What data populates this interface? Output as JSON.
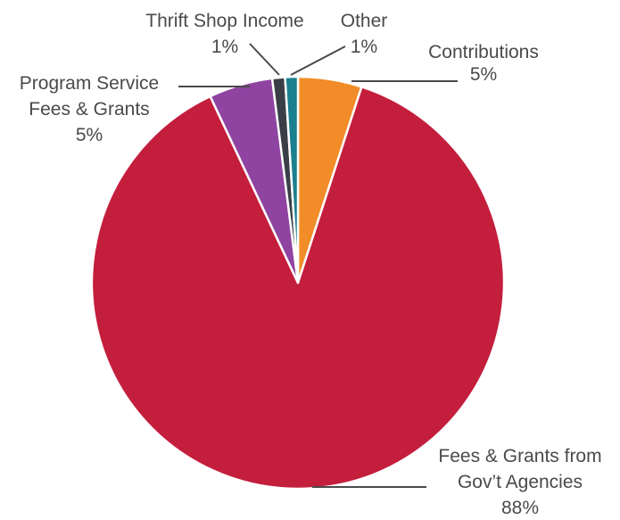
{
  "chart_data": {
    "type": "pie",
    "title": "",
    "start": "top",
    "direction": "clockwise",
    "slices": [
      {
        "key": "contributions",
        "label_lines": [
          "Contributions"
        ],
        "pct_label": "5%",
        "value": 5,
        "color": "#f28c28"
      },
      {
        "key": "fees-grants-gov",
        "label_lines": [
          "Fees & Grants from",
          "Gov’t Agencies"
        ],
        "pct_label": "88%",
        "value": 88,
        "color": "#c41e3d"
      },
      {
        "key": "program-service",
        "label_lines": [
          "Program Service",
          "Fees & Grants"
        ],
        "pct_label": "5%",
        "value": 5,
        "color": "#8e44a0"
      },
      {
        "key": "thrift-shop",
        "label_lines": [
          "Thrift Shop Income"
        ],
        "pct_label": "1%",
        "value": 1,
        "color": "#3a3f47"
      },
      {
        "key": "other",
        "label_lines": [
          "Other"
        ],
        "pct_label": "1%",
        "value": 1,
        "color": "#1a7f8e"
      }
    ]
  }
}
